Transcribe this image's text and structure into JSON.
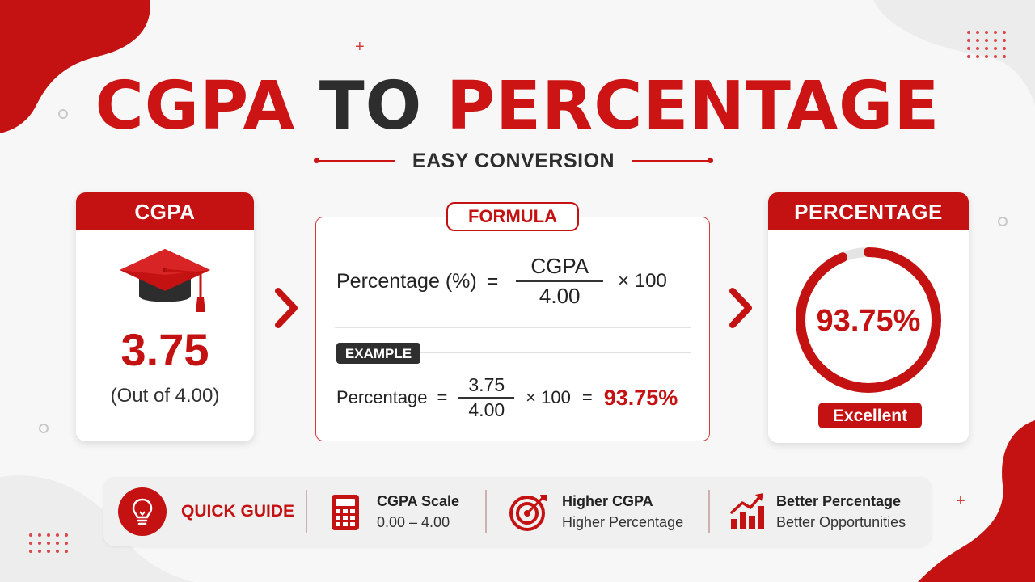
{
  "title": {
    "part1": "CGPA",
    "part2": "TO",
    "part3": "PERCENTAGE"
  },
  "subtitle": "EASY CONVERSION",
  "cgpa_card": {
    "header": "CGPA",
    "value": "3.75",
    "scale": "(Out of 4.00)"
  },
  "formula_card": {
    "tag": "FORMULA",
    "lhs": "Percentage (%)",
    "equals": "=",
    "numerator": "CGPA",
    "denominator": "4.00",
    "multiply": "× 100",
    "example_tag": "EXAMPLE",
    "example_lhs": "Percentage",
    "example_equals": "=",
    "example_numerator": "3.75",
    "example_denominator": "4.00",
    "example_multiply": "× 100",
    "example_equals2": "=",
    "example_result": "93.75%"
  },
  "percentage_card": {
    "header": "PERCENTAGE",
    "value": "93.75%",
    "progress": 0.9375,
    "badge": "Excellent"
  },
  "quick_guide": {
    "title": "QUICK GUIDE",
    "items": [
      {
        "icon": "calculator-icon",
        "title": "CGPA Scale",
        "subtitle": "0.00 – 4.00"
      },
      {
        "icon": "target-icon",
        "title": "Higher CGPA",
        "subtitle": "Higher Percentage"
      },
      {
        "icon": "growth-chart-icon",
        "title": "Better Percentage",
        "subtitle": "Better Opportunities"
      }
    ]
  },
  "colors": {
    "accent": "#c41212",
    "dark": "#2d2d2d",
    "background": "#f7f7f7"
  }
}
